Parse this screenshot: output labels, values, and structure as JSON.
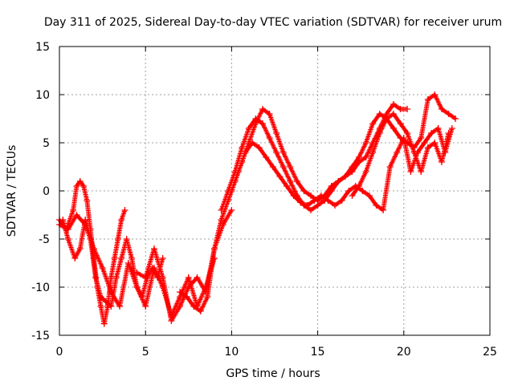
{
  "chart_data": {
    "type": "scatter",
    "title": "Day 311 of 2025, Sidereal Day-to-day VTEC variation (SDTVAR) for receiver urum",
    "xlabel": "GPS time / hours",
    "ylabel": "SDTVAR / TECUs",
    "xlim": [
      0,
      25
    ],
    "ylim": [
      -15,
      15
    ],
    "xticks": [
      0,
      5,
      10,
      15,
      20,
      25
    ],
    "yticks": [
      -15,
      -10,
      -5,
      0,
      5,
      10,
      15
    ],
    "xtick_labels": [
      "0",
      "5",
      "10",
      "15",
      "20",
      "25"
    ],
    "ytick_labels": [
      "-15",
      "-10",
      "-5",
      "0",
      "5",
      "10",
      "15"
    ],
    "grid": true,
    "marker": "+",
    "color": "#ff0000",
    "series": [
      {
        "name": "track-1",
        "x": [
          0,
          0.4,
          0.8,
          1.0,
          1.2,
          1.4,
          1.6,
          1.8,
          2.0,
          2.2,
          2.4,
          2.6,
          2.8,
          3.0,
          3.2,
          3.4,
          3.6,
          3.8
        ],
        "y": [
          -3,
          -4,
          -2,
          0.5,
          1.0,
          0.5,
          -1,
          -4,
          -7,
          -10,
          -12,
          -13.8,
          -12,
          -9,
          -7,
          -5,
          -3,
          -2
        ]
      },
      {
        "name": "track-2",
        "x": [
          0.2,
          0.5,
          0.9,
          1.2,
          1.5,
          1.8,
          2.1,
          2.4,
          2.7,
          3.0,
          3.3,
          3.6,
          3.9,
          4.2,
          4.5,
          4.8,
          5.1,
          5.4,
          5.7,
          6.0
        ],
        "y": [
          -3,
          -5,
          -7,
          -6,
          -3,
          -5,
          -9,
          -11,
          -11.5,
          -12,
          -9,
          -7,
          -5,
          -7,
          -10,
          -11,
          -9,
          -8,
          -9,
          -7
        ]
      },
      {
        "name": "track-3",
        "x": [
          0.0,
          0.5,
          1.0,
          1.5,
          2.0,
          2.5,
          3.0,
          3.5,
          4.0,
          4.5,
          5.0,
          5.5,
          6.0,
          6.5,
          7.0,
          7.5,
          8.0,
          8.5,
          9.0
        ],
        "y": [
          -3.5,
          -4,
          -2.5,
          -3.5,
          -6,
          -8,
          -10.5,
          -12,
          -7.5,
          -10,
          -12,
          -8,
          -10,
          -13,
          -11,
          -9,
          -12,
          -10,
          -7
        ]
      },
      {
        "name": "track-4",
        "x": [
          4.5,
          5.0,
          5.5,
          6.0,
          6.5,
          7.0,
          7.5,
          8.0,
          8.5,
          9.0,
          9.5,
          10.0
        ],
        "y": [
          -8.5,
          -9,
          -6,
          -9,
          -13.5,
          -12,
          -10,
          -9,
          -10.5,
          -6,
          -3.5,
          -2
        ]
      },
      {
        "name": "track-5",
        "x": [
          7.0,
          7.4,
          7.8,
          8.2,
          8.6,
          9.0,
          9.4,
          9.8,
          10.2,
          10.6,
          11.0,
          11.4,
          11.8,
          12.2,
          12.6,
          13.0,
          13.4,
          13.8,
          14.2,
          14.6,
          15.0,
          15.4,
          15.8,
          16.2,
          16.6,
          17.0,
          17.4,
          17.8,
          18.2,
          18.6,
          19.0,
          19.4,
          19.8,
          20.2
        ],
        "y": [
          -10.5,
          -11,
          -12,
          -12.5,
          -11,
          -6,
          -3,
          -1,
          1,
          3,
          5,
          7,
          8.5,
          8,
          6,
          4,
          2.5,
          1,
          0,
          -0.5,
          -1,
          -0.5,
          0.5,
          1,
          1.5,
          2,
          3,
          3.5,
          5,
          6.5,
          8,
          9,
          8.5,
          8.5
        ]
      },
      {
        "name": "track-6",
        "x": [
          9.4,
          9.8,
          10.2,
          10.6,
          11.0,
          11.4,
          11.8,
          12.2,
          12.6,
          13.0,
          13.4,
          13.8,
          14.2,
          14.6,
          15.0,
          15.4,
          15.8,
          16.2,
          16.6,
          17.0,
          17.4,
          17.8,
          18.2,
          18.6,
          19.0,
          19.4,
          19.8,
          20.2,
          20.6,
          21.0,
          21.4,
          21.8,
          22.2,
          22.6,
          23.0
        ],
        "y": [
          -2,
          0,
          2,
          4.5,
          6.5,
          7.5,
          7,
          5.5,
          4,
          2.5,
          1,
          -0.5,
          -1.5,
          -2,
          -1.5,
          -1,
          0,
          1,
          1.5,
          2.5,
          3.5,
          5,
          7,
          8,
          7.5,
          6.5,
          5.5,
          5,
          4.5,
          5.5,
          9.5,
          10,
          8.5,
          8,
          7.5
        ]
      },
      {
        "name": "track-7",
        "x": [
          10.0,
          10.4,
          10.8,
          11.2,
          11.6,
          12.0,
          12.4,
          12.8,
          13.2,
          13.6,
          14.0,
          14.4,
          14.8,
          15.2,
          15.6,
          16.0,
          16.4,
          16.8,
          17.2,
          17.6,
          18.0,
          18.4,
          18.8,
          19.2,
          19.6,
          20.0,
          20.4,
          20.8,
          21.2,
          21.6,
          22.0,
          22.4,
          22.8
        ],
        "y": [
          0,
          2,
          4,
          5,
          4.5,
          3.5,
          2.5,
          1.5,
          0.5,
          -0.5,
          -1.2,
          -1.5,
          -1,
          -0.5,
          -1,
          -1.5,
          -1,
          0,
          0.5,
          0,
          -0.5,
          -1.5,
          -2,
          2.5,
          4,
          5.5,
          2,
          4,
          5,
          6,
          6.5,
          4,
          6.5
        ]
      },
      {
        "name": "track-8",
        "x": [
          17.0,
          17.4,
          17.8,
          18.2,
          18.6,
          19.0,
          19.4,
          19.8,
          20.2,
          20.6,
          21.0,
          21.4,
          21.8,
          22.2,
          22.6
        ],
        "y": [
          -0.5,
          0.5,
          2,
          4,
          6,
          7.5,
          8,
          7,
          6,
          4,
          2,
          4.5,
          5,
          3,
          6
        ]
      }
    ]
  }
}
